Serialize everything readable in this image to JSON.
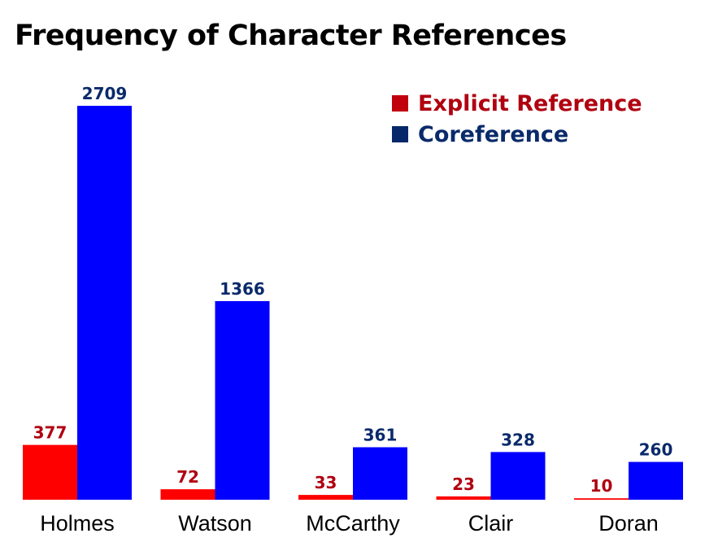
{
  "chart_data": {
    "type": "bar",
    "title": "Frequency of Character References",
    "categories": [
      "Holmes",
      "Watson",
      "McCarthy",
      "Clair",
      "Doran"
    ],
    "series": [
      {
        "name": "Explicit Reference",
        "values": [
          377,
          72,
          33,
          23,
          10
        ],
        "color": "#ff0000",
        "label_color": "#b00010"
      },
      {
        "name": "Coreference",
        "values": [
          2709,
          1366,
          361,
          328,
          260
        ],
        "color": "#0000ff",
        "label_color": "#0a2a6a"
      }
    ],
    "xlabel": "",
    "ylabel": "",
    "ylim": [
      0,
      2709
    ],
    "grid": false,
    "legend_position": "top-right",
    "legend_swatch_colors": [
      "#c0000c",
      "#06286a"
    ]
  }
}
